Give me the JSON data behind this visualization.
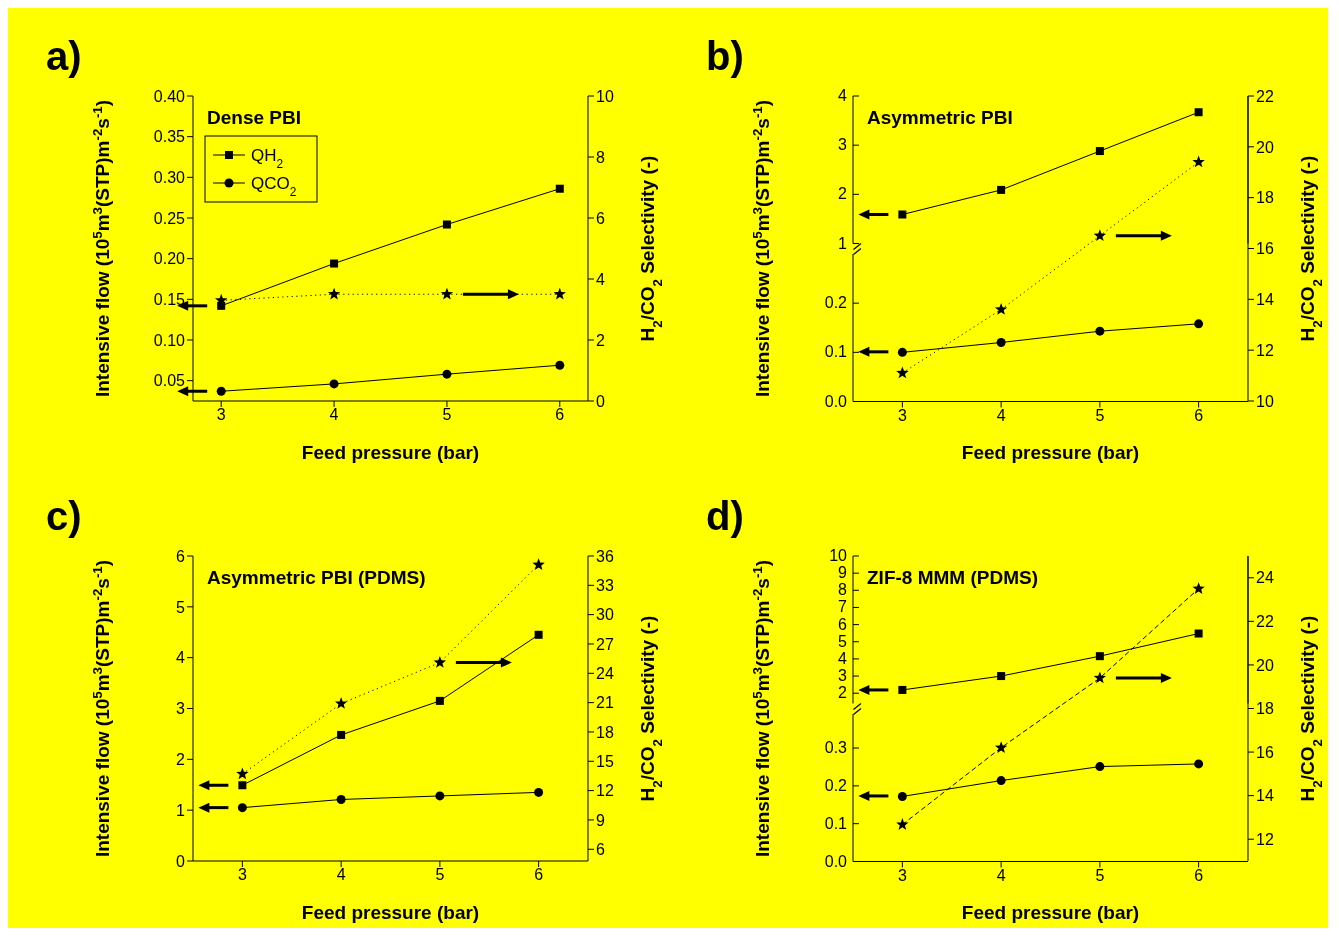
{
  "chart_data": [
    {
      "type": "line",
      "title": "Dense PBI",
      "annotations": [
        "a)"
      ],
      "xlabel": "Feed pressure (bar)",
      "ylabel": "Intensive flow (10$^{5}$m$^{3}$(STP)m$^{-2}$s$^{-1}$)",
      "y2label": "H$_{2}$/CO$_{2}$ Selectivity (-)",
      "x": [
        3,
        4,
        5,
        6
      ],
      "xlim": [
        2.75,
        6.25
      ],
      "xticks": [
        3,
        4,
        5,
        6
      ],
      "ylim": [
        0.025,
        0.4
      ],
      "yticks": [
        {
          "value": 0.05,
          "label": "0.05"
        },
        {
          "value": 0.1,
          "label": "0.10"
        },
        0.15,
        {
          "value": 0.2,
          "label": "0.20"
        },
        0.25,
        {
          "value": 0.3,
          "label": "0.30"
        },
        0.35,
        {
          "value": 0.4,
          "label": "0.40"
        }
      ],
      "y2lim": [
        0,
        10
      ],
      "y2ticks": [
        0,
        2,
        4,
        6,
        8,
        10
      ],
      "legend": "top left",
      "series": [
        {
          "name": "QH$_{2}$",
          "color": "#000000",
          "values": [
            0.142,
            0.194,
            0.242,
            0.286
          ],
          "marker": "square",
          "line_style": "solid"
        },
        {
          "name": "QCO$_{2}$",
          "color": "#000000",
          "values": [
            0.037,
            0.046,
            0.058,
            0.069
          ],
          "marker": "circle",
          "line_style": "solid"
        },
        {
          "color": "#000000",
          "values": [
            3.3,
            3.5,
            3.5,
            3.5
          ],
          "axis": "y2",
          "marker": "star",
          "line_style": "dotted"
        }
      ]
    },
    {
      "type": "line",
      "title": "Asymmetric PBI",
      "annotations": [
        "b)"
      ],
      "x": [
        3,
        4,
        5,
        6
      ],
      "xlim": [
        2.5,
        6.5
      ],
      "xticks": [
        3,
        4,
        5,
        6
      ],
      "ylim": [
        1,
        4
      ],
      "yticks": [
        1,
        2,
        3,
        4
      ],
      "tick_labels": "y",
      "series": [
        {
          "color": "#000000",
          "values": [
            1.59,
            2.09,
            2.88,
            3.67
          ],
          "marker": "square",
          "line_style": "solid"
        }
      ]
    },
    {
      "type": "line",
      "xlabel": "Feed pressure (bar)",
      "ylabel": "Intensive flow (10$^{5}$m$^{3}$(STP)m$^{-2}$s$^{-1}$)",
      "x": [
        3,
        4,
        5,
        6
      ],
      "xlim": [
        2.5,
        6.5
      ],
      "xticks": [
        3,
        4,
        5,
        6
      ],
      "ylim": [
        0,
        0.3
      ],
      "yticks": [
        {
          "value": 0,
          "label": "0.0"
        },
        0.1,
        0.2
      ],
      "series": [
        {
          "color": "#000000",
          "values": [
            0.1,
            0.12,
            0.143,
            0.158
          ],
          "marker": "circle",
          "line_style": "solid"
        }
      ]
    },
    {
      "type": "line",
      "y2label": "H$_{2}$/CO$_{2}$ Selectivity (-)",
      "x": [
        3,
        4,
        5,
        6
      ],
      "xlim": [
        2.5,
        6.5
      ],
      "xticks": [
        3,
        4,
        5,
        6
      ],
      "y2lim": [
        10,
        22
      ],
      "y2ticks": [
        10,
        12,
        14,
        16,
        18,
        20,
        22
      ],
      "tick_labels": "y",
      "series": [
        {
          "color": "#000000",
          "values": [
            11.1,
            13.6,
            16.5,
            19.4
          ],
          "axis": "y2",
          "marker": "star",
          "line_style": "dotted"
        }
      ]
    },
    {
      "type": "line",
      "title": "Asymmetric PBI (PDMS)",
      "annotations": [
        "c)"
      ],
      "xlabel": "Feed pressure (bar)",
      "ylabel": "Intensive flow (10$^{5}$m$^{3}$(STP)m$^{-2}$s$^{-1}$)",
      "y2label": "H$_{2}$/CO$_{2}$ Selectivity (-)",
      "x": [
        3,
        4,
        5,
        6
      ],
      "xlim": [
        2.5,
        6.5
      ],
      "xticks": [
        3,
        4,
        5,
        6
      ],
      "ylim": [
        0,
        6
      ],
      "yticks": [
        0,
        1,
        2,
        3,
        4,
        5,
        6
      ],
      "y2lim": [
        4.8,
        36
      ],
      "y2ticks": [
        6,
        9,
        12,
        15,
        18,
        21,
        24,
        27,
        30,
        33,
        36
      ],
      "series": [
        {
          "color": "#000000",
          "values": [
            1.49,
            2.48,
            3.15,
            4.45
          ],
          "marker": "square",
          "line_style": "solid"
        },
        {
          "color": "#000000",
          "values": [
            1.05,
            1.21,
            1.28,
            1.35
          ],
          "marker": "circle",
          "line_style": "solid"
        },
        {
          "color": "#000000",
          "values": [
            13.7,
            20.9,
            25.1,
            35.1
          ],
          "axis": "y2",
          "marker": "star",
          "line_style": "dotted"
        }
      ]
    },
    {
      "type": "line",
      "title": "ZIF-8 MMM (PDMS)",
      "annotations": [
        "d)"
      ],
      "x": [
        3,
        4,
        5,
        6
      ],
      "xlim": [
        2.5,
        6.5
      ],
      "xticks": [
        3,
        4,
        5,
        6
      ],
      "ylim": [
        1.4,
        10
      ],
      "yticks": [
        2,
        3,
        4,
        5,
        6,
        7,
        8,
        9,
        10
      ],
      "tick_labels": "y",
      "series": [
        {
          "color": "#000000",
          "values": [
            2.19,
            3.0,
            4.16,
            5.48
          ],
          "marker": "square",
          "line_style": "solid"
        }
      ]
    },
    {
      "type": "line",
      "xlabel": "Feed pressure (bar)",
      "ylabel": "Intensive flow (10$^{5}$m$^{3}$(STP)m$^{-2}$s$^{-1}$)",
      "x": [
        3,
        4,
        5,
        6
      ],
      "xlim": [
        2.5,
        6.5
      ],
      "xticks": [
        3,
        4,
        5,
        6
      ],
      "ylim": [
        0,
        0.39
      ],
      "yticks": [
        {
          "value": 0,
          "label": "0.0"
        },
        0.1,
        0.2,
        0.3
      ],
      "series": [
        {
          "color": "#000000",
          "values": [
            0.172,
            0.214,
            0.251,
            0.258
          ],
          "marker": "circle",
          "line_style": "solid"
        }
      ]
    },
    {
      "type": "line",
      "y2label": "H$_{2}$/CO$_{2}$ Selectivity (-)",
      "x": [
        3,
        4,
        5,
        6
      ],
      "xlim": [
        2.5,
        6.5
      ],
      "xticks": [
        3,
        4,
        5,
        6
      ],
      "y2lim": [
        11,
        25
      ],
      "y2ticks": [
        12,
        14,
        16,
        18,
        20,
        22,
        24
      ],
      "tick_labels": "y",
      "series": [
        {
          "color": "#000000",
          "values": [
            12.67,
            16.2,
            19.4,
            23.5
          ],
          "axis": "y2",
          "marker": "star",
          "line_style": "dashed"
        }
      ]
    }
  ]
}
